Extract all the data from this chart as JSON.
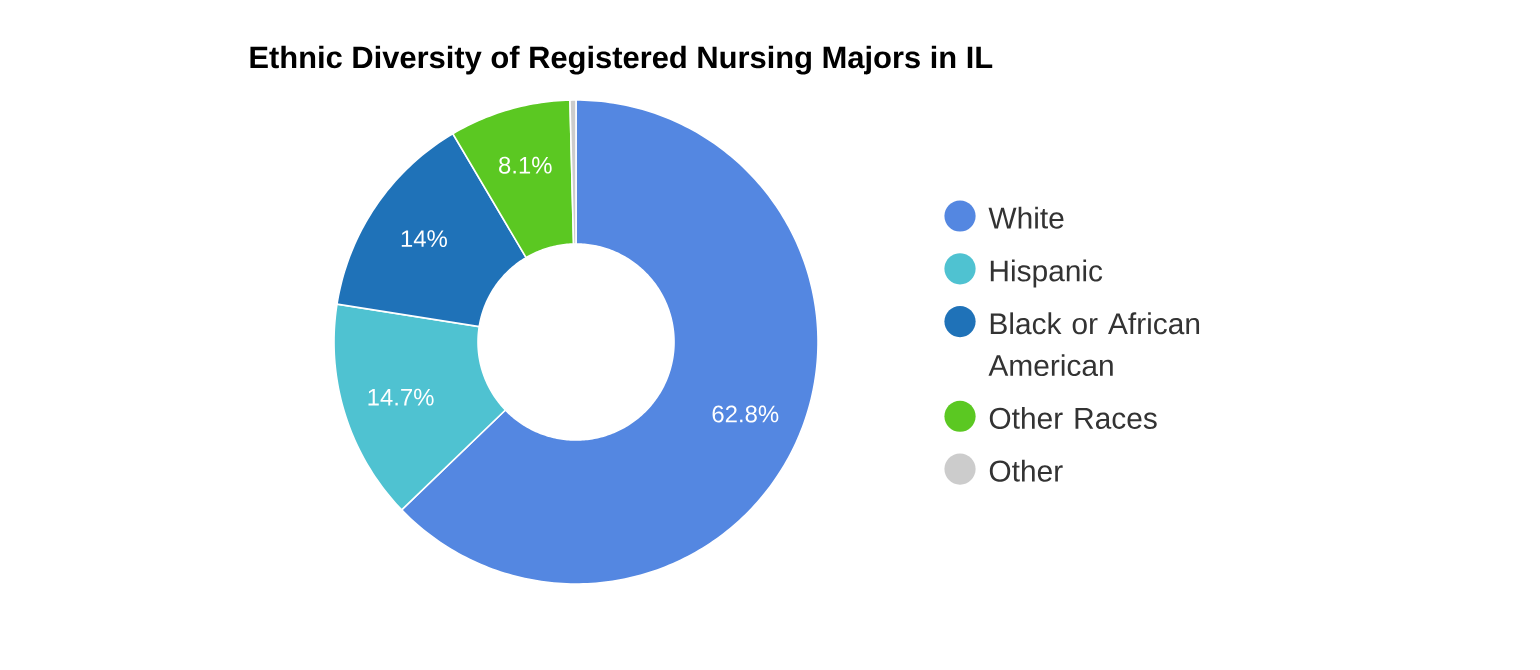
{
  "chart_data": {
    "type": "donut",
    "title": "Ethnic Diversity of Registered Nursing Majors in IL",
    "categories": [
      "White",
      "Hispanic",
      "Black or African American",
      "Other Races",
      "Other"
    ],
    "values": [
      62.8,
      14.7,
      14,
      8.1,
      0.4
    ],
    "colors": [
      "#5487e1",
      "#4fc2d1",
      "#1f72b8",
      "#5bc822",
      "#cccccc"
    ],
    "value_labels": [
      "62.8%",
      "14.7%",
      "14%",
      "8.1%",
      null
    ],
    "legend": "right"
  }
}
